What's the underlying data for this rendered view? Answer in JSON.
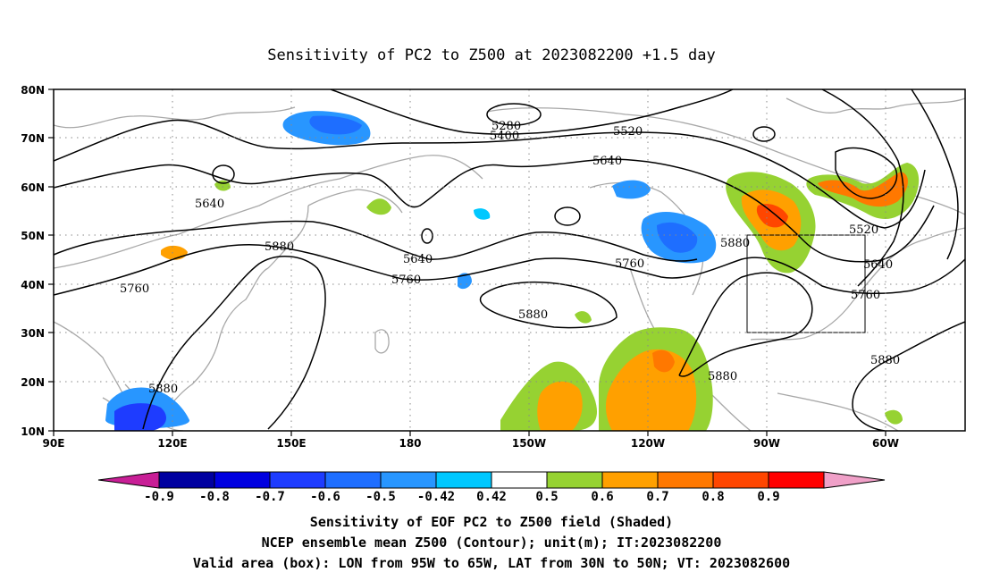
{
  "title": "Sensitivity of PC2 to Z500 at 2023082200 +1.5 day",
  "lat_ticks": [
    "80N",
    "70N",
    "60N",
    "50N",
    "40N",
    "30N",
    "20N",
    "10N"
  ],
  "lon_ticks": [
    "90E",
    "120E",
    "150E",
    "180",
    "150W",
    "120W",
    "90W",
    "60W"
  ],
  "contour_labels": [
    "5280",
    "5400",
    "5520",
    "5640",
    "5640",
    "5880",
    "5640",
    "5760",
    "5760",
    "5880",
    "5760",
    "5880",
    "5880",
    "5520",
    "5640",
    "5760",
    "5880",
    "5880"
  ],
  "colorbar": {
    "colors": [
      "#c81e96",
      "#0000a0",
      "#0000e0",
      "#1e3cff",
      "#1e6eff",
      "#2896ff",
      "#00c8ff",
      "#ffffff",
      "#96d232",
      "#ffa000",
      "#ff7800",
      "#ff4600",
      "#ff0000",
      "#f0a0c8"
    ],
    "labels": [
      "-0.9",
      "-0.8",
      "-0.7",
      "-0.6",
      "-0.5",
      "-0.42",
      "0.42",
      "0.5",
      "0.6",
      "0.7",
      "0.8",
      "0.9"
    ]
  },
  "footer": [
    "Sensitivity of EOF PC2 to Z500 field (Shaded)",
    "NCEP ensemble mean Z500 (Contour); unit(m); IT:2023082200",
    "Valid area (box): LON from 95W to 65W, LAT from 30N to 50N; VT: 2023082600"
  ]
}
